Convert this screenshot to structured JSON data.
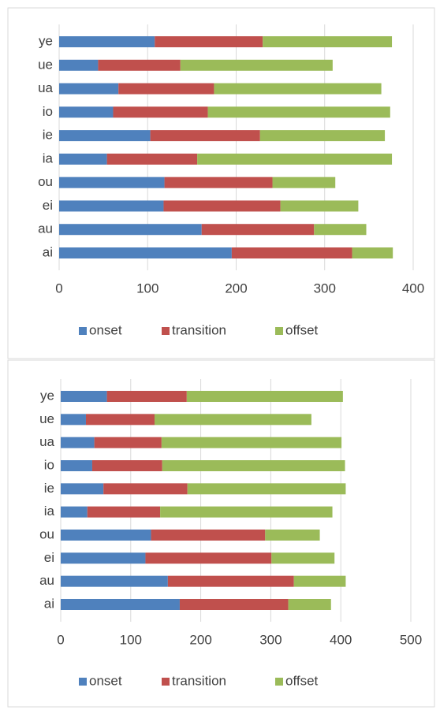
{
  "chart_data": [
    {
      "type": "stacked-bar",
      "categories": [
        "ai",
        "au",
        "ei",
        "ou",
        "ia",
        "ie",
        "io",
        "ua",
        "ue",
        "ye"
      ],
      "series": [
        {
          "name": "onset",
          "color": "#4f81bd",
          "values": [
            195,
            161,
            118,
            119,
            54,
            103,
            61,
            67,
            44,
            108
          ]
        },
        {
          "name": "transition",
          "color": "#c0504d",
          "values": [
            136,
            127,
            132,
            122,
            102,
            124,
            107,
            108,
            93,
            122
          ]
        },
        {
          "name": "offset",
          "color": "#9bbb59",
          "values": [
            46,
            59,
            88,
            71,
            220,
            141,
            206,
            189,
            172,
            146
          ]
        }
      ],
      "xlim": [
        0,
        400
      ],
      "xticks": [
        0,
        100,
        200,
        300,
        400
      ],
      "grid": true,
      "legend": "bottom"
    },
    {
      "type": "stacked-bar",
      "categories": [
        "ai",
        "au",
        "ei",
        "ou",
        "ia",
        "ie",
        "io",
        "ua",
        "ue",
        "ye"
      ],
      "series": [
        {
          "name": "onset",
          "color": "#4f81bd",
          "values": [
            170,
            153,
            121,
            129,
            38,
            61,
            45,
            48,
            36,
            66
          ]
        },
        {
          "name": "transition",
          "color": "#c0504d",
          "values": [
            155,
            180,
            180,
            163,
            104,
            120,
            100,
            96,
            98,
            114
          ]
        },
        {
          "name": "offset",
          "color": "#9bbb59",
          "values": [
            61,
            74,
            90,
            78,
            246,
            226,
            261,
            257,
            224,
            223
          ]
        }
      ],
      "xlim": [
        0,
        500
      ],
      "xticks": [
        0,
        100,
        200,
        300,
        400,
        500
      ],
      "grid": true,
      "legend": "bottom"
    }
  ]
}
